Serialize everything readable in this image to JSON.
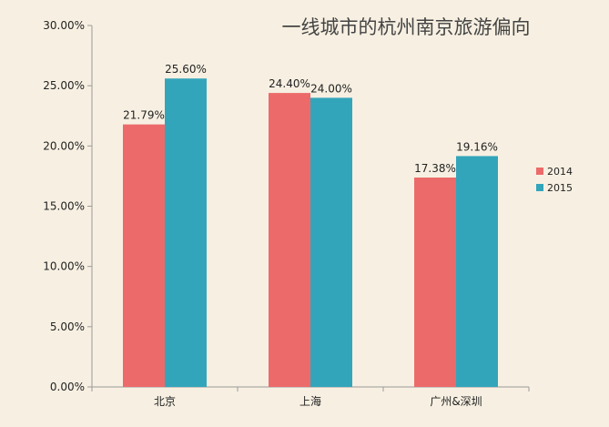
{
  "chart_data": {
    "type": "bar",
    "title": "一线城市的杭州南京旅游偏向",
    "xlabel": "",
    "ylabel": "",
    "categories": [
      "北京",
      "上海",
      "广州&深圳"
    ],
    "series": [
      {
        "name": "2014",
        "values": [
          21.79,
          24.4,
          17.38
        ],
        "labels": [
          "21.79%",
          "24.40%",
          "17.38%"
        ],
        "color": "#ec6b6a"
      },
      {
        "name": "2015",
        "values": [
          25.6,
          24.0,
          19.16
        ],
        "labels": [
          "25.60%",
          "24.00%",
          "19.16%"
        ],
        "color": "#33a5bb"
      }
    ],
    "ylim": [
      0,
      30
    ],
    "yticks": [
      0,
      5,
      10,
      15,
      20,
      25,
      30
    ],
    "ytick_labels": [
      "0.00%",
      "5.00%",
      "10.00%",
      "15.00%",
      "20.00%",
      "25.00%",
      "30.00%"
    ],
    "grid": false,
    "legend_position": "right"
  }
}
